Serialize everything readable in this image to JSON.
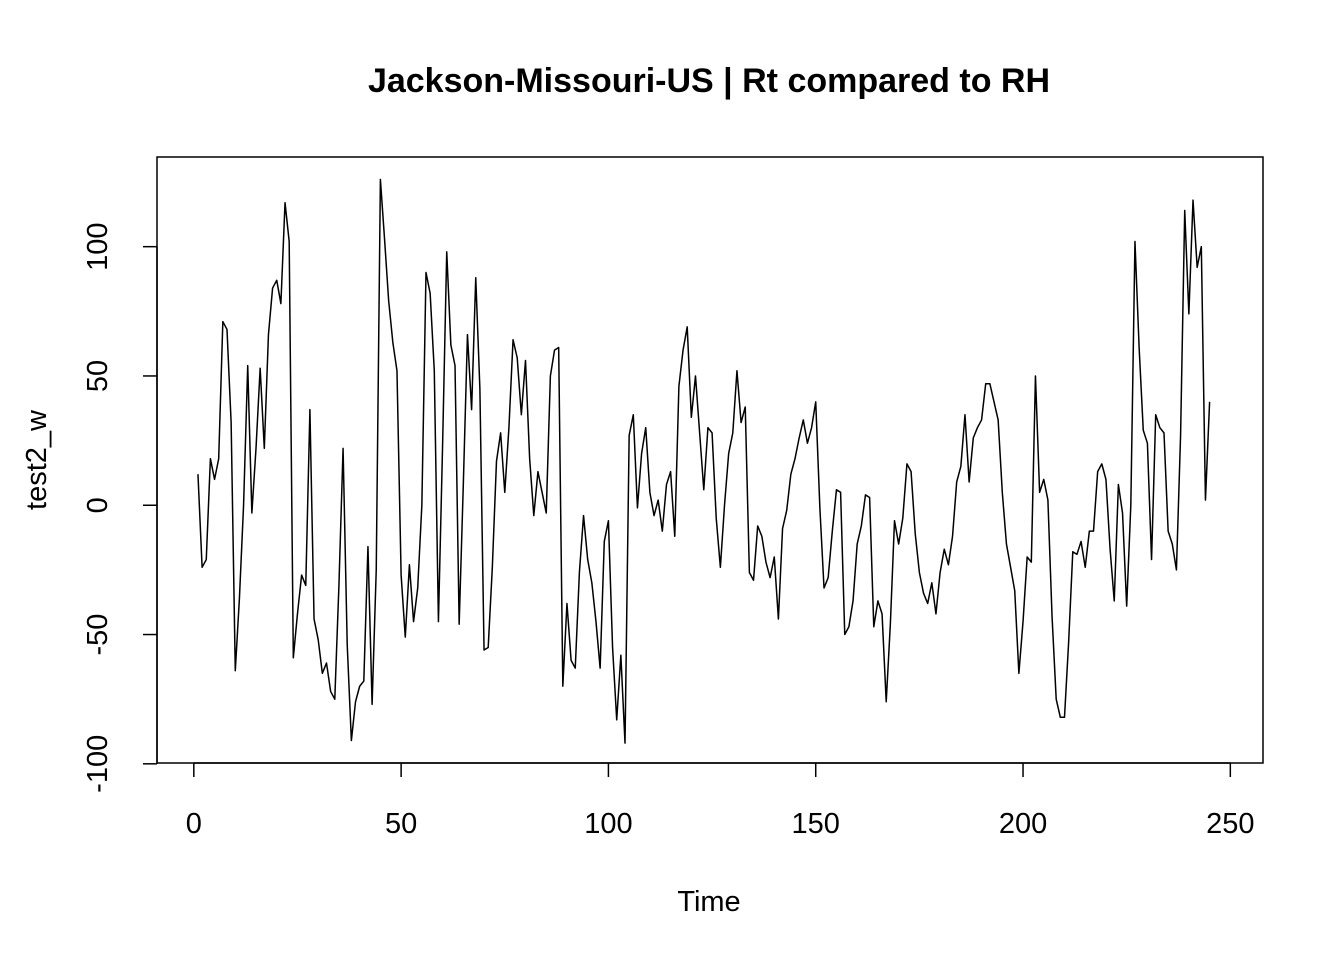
{
  "chart_data": {
    "type": "line",
    "title": "Jackson-Missouri-US | Rt compared to RH",
    "xlabel": "Time",
    "ylabel": "test2_w",
    "xlim": [
      1,
      248
    ],
    "ylim": [
      -91,
      126
    ],
    "x_ticks": [
      0,
      50,
      100,
      150,
      200,
      250
    ],
    "y_ticks": [
      -100,
      -50,
      0,
      50,
      100
    ],
    "grid": false,
    "legend": "none",
    "line_color": "#000000",
    "series": [
      {
        "x_start": 1,
        "values": [
          12,
          -24,
          -21,
          18,
          10,
          18,
          71,
          68,
          32,
          -64,
          -36,
          0,
          54,
          -3,
          22,
          53,
          22,
          66,
          84,
          87,
          78,
          117,
          102,
          -59,
          -42,
          -27,
          -31,
          37,
          -44,
          -52,
          -65,
          -61,
          -72,
          -75,
          -31,
          22,
          -54,
          -91,
          -76,
          -70,
          -68,
          -16,
          -77,
          -25,
          126,
          103,
          79,
          63,
          52,
          -27,
          -51,
          -23,
          -45,
          -32,
          0,
          90,
          82,
          52,
          -45,
          23,
          98,
          62,
          54,
          -46,
          8,
          66,
          37,
          88,
          45,
          -56,
          -55,
          -24,
          17,
          28,
          5,
          30,
          64,
          57,
          35,
          56,
          18,
          -4,
          13,
          5,
          -3,
          50,
          60,
          61,
          -70,
          -38,
          -60,
          -63,
          -26,
          -4,
          -21,
          -30,
          -45,
          -63,
          -14,
          -6,
          -55,
          -83,
          -58,
          -92,
          27,
          35,
          -1,
          20,
          30,
          5,
          -4,
          2,
          -10,
          8,
          13,
          -12,
          46,
          60,
          69,
          34,
          50,
          28,
          6,
          30,
          28,
          -5,
          -24,
          0,
          20,
          28,
          52,
          32,
          38,
          -26,
          -29,
          -8,
          -12,
          -22,
          -28,
          -20,
          -44,
          -9,
          -2,
          12,
          18,
          26,
          33,
          24,
          30,
          40,
          -1,
          -32,
          -28,
          -10,
          6,
          5,
          -50,
          -47,
          -37,
          -15,
          -8,
          4,
          3,
          -47,
          -37,
          -42,
          -76,
          -46,
          -6,
          -15,
          -5,
          16,
          13,
          -11,
          -26,
          -34,
          -38,
          -30,
          -42,
          -26,
          -17,
          -23,
          -12,
          9,
          15,
          35,
          9,
          26,
          30,
          33,
          47,
          47,
          40,
          33,
          5,
          -15,
          -24,
          -33,
          -65,
          -45,
          -20,
          -22,
          50,
          5,
          10,
          2,
          -43,
          -75,
          -82,
          -82,
          -53,
          -18,
          -19,
          -14,
          -24,
          -10,
          -10,
          13,
          16,
          10,
          -17,
          -37,
          8,
          -3,
          -39,
          0,
          102,
          61,
          29,
          24,
          -21,
          35,
          30,
          28,
          -10,
          -15,
          -25,
          27,
          114,
          74,
          118,
          92,
          100,
          2,
          40
        ]
      }
    ]
  }
}
